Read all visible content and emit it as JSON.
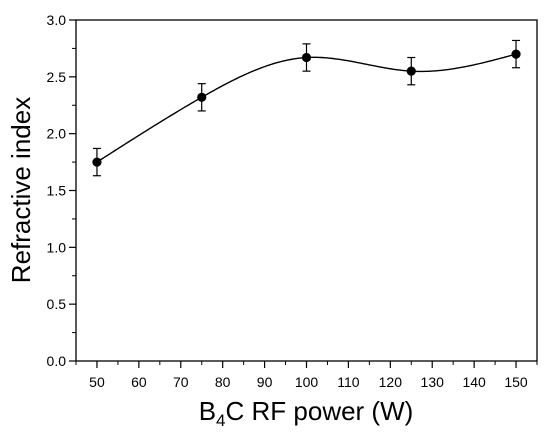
{
  "chart_data": {
    "type": "scatter",
    "title": "",
    "xlabel": {
      "main": "B",
      "sub": "4",
      "rest": "C RF power (W)"
    },
    "ylabel": "Refractive index",
    "xlim": [
      45,
      155
    ],
    "ylim": [
      0.0,
      3.0
    ],
    "x_ticks": [
      50,
      60,
      70,
      80,
      90,
      100,
      110,
      120,
      130,
      140,
      150
    ],
    "y_ticks": [
      0.0,
      0.5,
      1.0,
      1.5,
      2.0,
      2.5,
      3.0
    ],
    "y_tick_labels": [
      "0.0",
      "0.5",
      "1.0",
      "1.5",
      "2.0",
      "2.5",
      "3.0"
    ],
    "grid": false,
    "series": [
      {
        "points": [
          {
            "x": 50,
            "y": 1.75,
            "err": 0.12
          },
          {
            "x": 75,
            "y": 2.32,
            "err": 0.12
          },
          {
            "x": 100,
            "y": 2.67,
            "err": 0.12
          },
          {
            "x": 125,
            "y": 2.55,
            "err": 0.12
          },
          {
            "x": 150,
            "y": 2.7,
            "err": 0.12
          }
        ],
        "fit_curve": true,
        "color": "#000000"
      }
    ]
  }
}
